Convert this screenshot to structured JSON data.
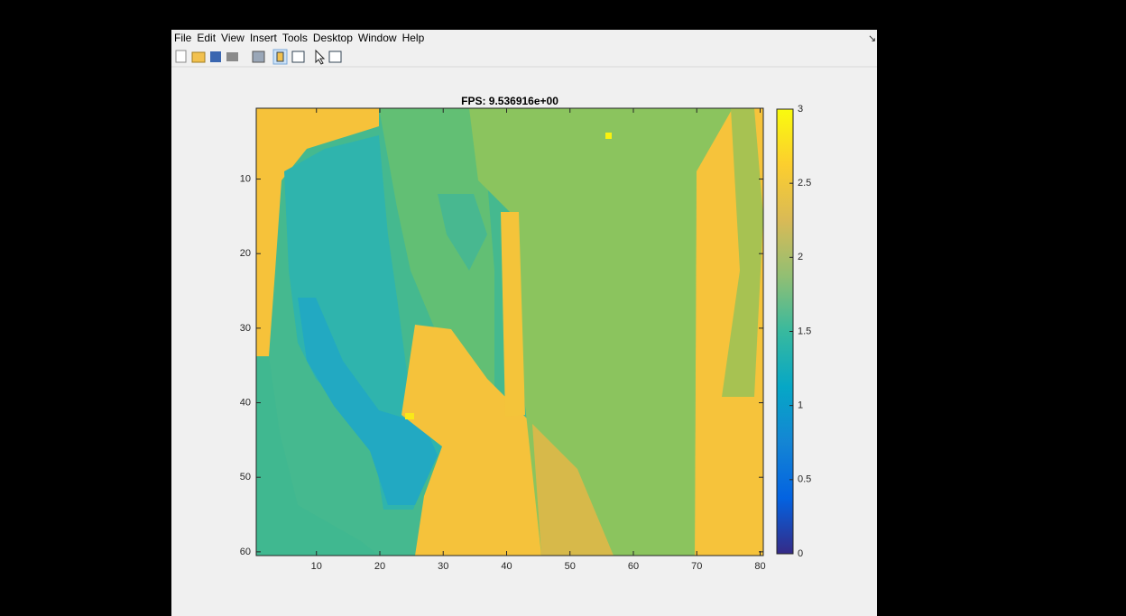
{
  "menu": [
    "File",
    "Edit",
    "View",
    "Insert",
    "Tools",
    "Desktop",
    "Window",
    "Help"
  ],
  "chart_data": {
    "type": "heatmap",
    "title": "FPS: 9.536916e+00",
    "xlim": [
      0.5,
      80.5
    ],
    "ylim": [
      0.5,
      60.5
    ],
    "xticks": [
      10,
      20,
      30,
      40,
      50,
      60,
      70,
      80
    ],
    "yticks": [
      10,
      20,
      30,
      40,
      50,
      60
    ],
    "colorbar": {
      "lim": [
        0,
        3
      ],
      "ticks": [
        0,
        0.5,
        1,
        1.5,
        2,
        2.5,
        3
      ]
    }
  }
}
